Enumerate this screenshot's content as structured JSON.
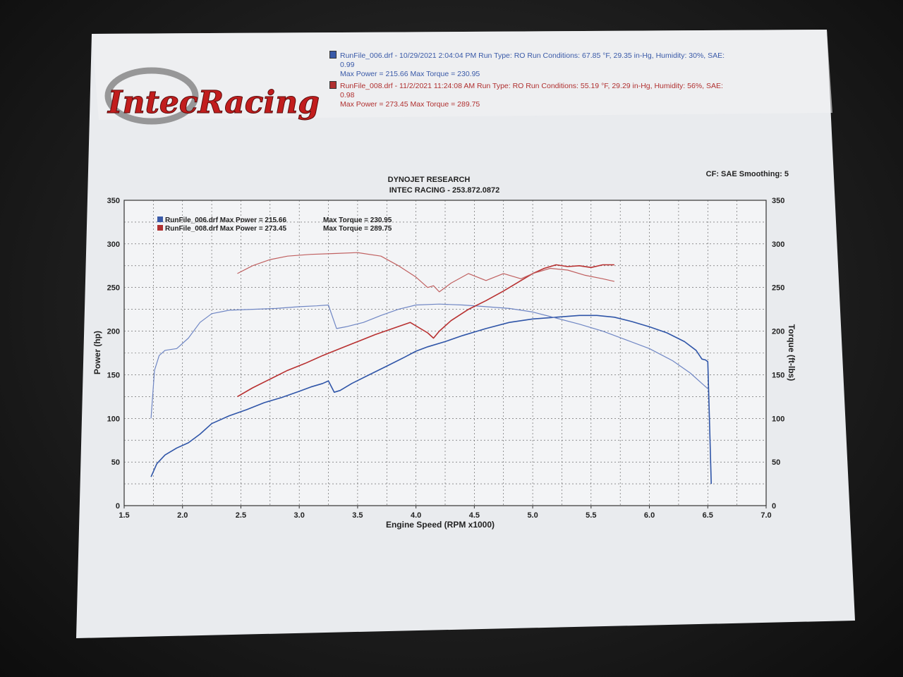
{
  "header": {
    "runs": [
      {
        "line1": "RunFile_006.drf - 10/29/2021 2:04:04 PM  Run Type: RO  Run Conditions: 67.85 °F, 29.35 in-Hg,  Humidity:  30%, SAE:",
        "line2": "0.99",
        "line3": "Max Power = 215.66  Max Torque = 230.95",
        "color": "#3a5aa8"
      },
      {
        "line1": "RunFile_008.drf - 11/2/2021 11:24:08 AM  Run Type: RO  Run Conditions: 55.19 °F, 29.29 in-Hg,  Humidity:  56%, SAE:",
        "line2": "0.98",
        "line3": "Max Power = 273.45  Max Torque = 289.75",
        "color": "#b03030"
      }
    ],
    "cf_smoothing": "CF: SAE  Smoothing: 5",
    "logo_text": "IntecRacing"
  },
  "chart_data": {
    "type": "line",
    "title": "DYNOJET RESEARCH",
    "subtitle": "INTEC RACING - 253.872.0872",
    "xlabel": "Engine Speed (RPM x1000)",
    "ylabel": "Power (hp)",
    "y2label": "Torque (ft-lbs)",
    "xlim": [
      1.5,
      7.0
    ],
    "ylim": [
      0,
      350
    ],
    "y2lim": [
      0,
      350
    ],
    "x_ticks": [
      "1.5",
      "2.0",
      "2.5",
      "3.0",
      "3.5",
      "4.0",
      "4.5",
      "5.0",
      "5.5",
      "6.0",
      "6.5",
      "7.0"
    ],
    "y_ticks": [
      "0",
      "50",
      "100",
      "150",
      "200",
      "250",
      "300",
      "350"
    ],
    "y2_ticks": [
      "0",
      "50",
      "100",
      "150",
      "200",
      "250",
      "300",
      "350"
    ],
    "grid": true,
    "legend": [
      {
        "text": "RunFile_006.drf Max Power = 215.66",
        "torque": "Max Torque = 230.95",
        "color": "#3a5aa8"
      },
      {
        "text": "RunFile_008.drf Max Power = 273.45",
        "torque": "Max Torque = 289.75",
        "color": "#b03030"
      }
    ],
    "series": [
      {
        "name": "RunFile_006.drf Power",
        "color": "#2f55a8",
        "width": 1.6,
        "points": [
          [
            1.73,
            33
          ],
          [
            1.78,
            48
          ],
          [
            1.85,
            58
          ],
          [
            1.95,
            66
          ],
          [
            2.05,
            72
          ],
          [
            2.15,
            82
          ],
          [
            2.25,
            94
          ],
          [
            2.4,
            103
          ],
          [
            2.55,
            110
          ],
          [
            2.7,
            118
          ],
          [
            2.85,
            124
          ],
          [
            3.0,
            131
          ],
          [
            3.1,
            136
          ],
          [
            3.2,
            140
          ],
          [
            3.25,
            143
          ],
          [
            3.3,
            130
          ],
          [
            3.35,
            132
          ],
          [
            3.45,
            140
          ],
          [
            3.6,
            150
          ],
          [
            3.75,
            160
          ],
          [
            3.9,
            170
          ],
          [
            4.0,
            177
          ],
          [
            4.1,
            182
          ],
          [
            4.25,
            188
          ],
          [
            4.4,
            195
          ],
          [
            4.6,
            203
          ],
          [
            4.8,
            210
          ],
          [
            5.0,
            214
          ],
          [
            5.2,
            216
          ],
          [
            5.4,
            218
          ],
          [
            5.55,
            218
          ],
          [
            5.7,
            216
          ],
          [
            5.85,
            211
          ],
          [
            6.0,
            205
          ],
          [
            6.15,
            198
          ],
          [
            6.3,
            188
          ],
          [
            6.4,
            178
          ],
          [
            6.45,
            168
          ],
          [
            6.48,
            167
          ],
          [
            6.5,
            165
          ],
          [
            6.51,
            120
          ],
          [
            6.53,
            25
          ]
        ]
      },
      {
        "name": "RunFile_006.drf Torque",
        "color": "#6f86c4",
        "width": 1.2,
        "points": [
          [
            1.73,
            100
          ],
          [
            1.76,
            155
          ],
          [
            1.8,
            172
          ],
          [
            1.85,
            178
          ],
          [
            1.95,
            180
          ],
          [
            2.05,
            192
          ],
          [
            2.15,
            210
          ],
          [
            2.25,
            220
          ],
          [
            2.4,
            224
          ],
          [
            2.6,
            225
          ],
          [
            2.8,
            226
          ],
          [
            3.0,
            228
          ],
          [
            3.15,
            229
          ],
          [
            3.25,
            230
          ],
          [
            3.32,
            203
          ],
          [
            3.4,
            205
          ],
          [
            3.55,
            210
          ],
          [
            3.7,
            218
          ],
          [
            3.85,
            225
          ],
          [
            4.0,
            230
          ],
          [
            4.2,
            231
          ],
          [
            4.4,
            230
          ],
          [
            4.6,
            228
          ],
          [
            4.8,
            226
          ],
          [
            5.0,
            222
          ],
          [
            5.2,
            215
          ],
          [
            5.4,
            208
          ],
          [
            5.6,
            200
          ],
          [
            5.8,
            190
          ],
          [
            6.0,
            180
          ],
          [
            6.2,
            166
          ],
          [
            6.35,
            152
          ],
          [
            6.45,
            140
          ],
          [
            6.5,
            134
          ]
        ]
      },
      {
        "name": "RunFile_008.drf Power",
        "color": "#b83030",
        "width": 1.6,
        "points": [
          [
            2.47,
            125
          ],
          [
            2.6,
            135
          ],
          [
            2.75,
            145
          ],
          [
            2.9,
            155
          ],
          [
            3.05,
            163
          ],
          [
            3.2,
            172
          ],
          [
            3.35,
            180
          ],
          [
            3.5,
            188
          ],
          [
            3.65,
            196
          ],
          [
            3.8,
            203
          ],
          [
            3.95,
            210
          ],
          [
            4.1,
            198
          ],
          [
            4.15,
            192
          ],
          [
            4.2,
            200
          ],
          [
            4.3,
            212
          ],
          [
            4.45,
            225
          ],
          [
            4.6,
            235
          ],
          [
            4.75,
            246
          ],
          [
            4.9,
            258
          ],
          [
            5.0,
            266
          ],
          [
            5.1,
            272
          ],
          [
            5.2,
            276
          ],
          [
            5.3,
            274
          ],
          [
            5.4,
            275
          ],
          [
            5.5,
            273
          ],
          [
            5.6,
            276
          ],
          [
            5.7,
            276
          ]
        ]
      },
      {
        "name": "RunFile_008.drf Torque",
        "color": "#c06060",
        "width": 1.2,
        "points": [
          [
            2.47,
            266
          ],
          [
            2.6,
            275
          ],
          [
            2.75,
            282
          ],
          [
            2.9,
            286
          ],
          [
            3.1,
            288
          ],
          [
            3.3,
            289
          ],
          [
            3.5,
            290
          ],
          [
            3.7,
            286
          ],
          [
            3.85,
            275
          ],
          [
            4.0,
            262
          ],
          [
            4.1,
            250
          ],
          [
            4.15,
            252
          ],
          [
            4.2,
            245
          ],
          [
            4.3,
            255
          ],
          [
            4.45,
            266
          ],
          [
            4.6,
            258
          ],
          [
            4.75,
            266
          ],
          [
            4.9,
            260
          ],
          [
            5.0,
            266
          ],
          [
            5.15,
            272
          ],
          [
            5.3,
            270
          ],
          [
            5.45,
            264
          ],
          [
            5.6,
            260
          ],
          [
            5.7,
            257
          ]
        ]
      }
    ]
  }
}
